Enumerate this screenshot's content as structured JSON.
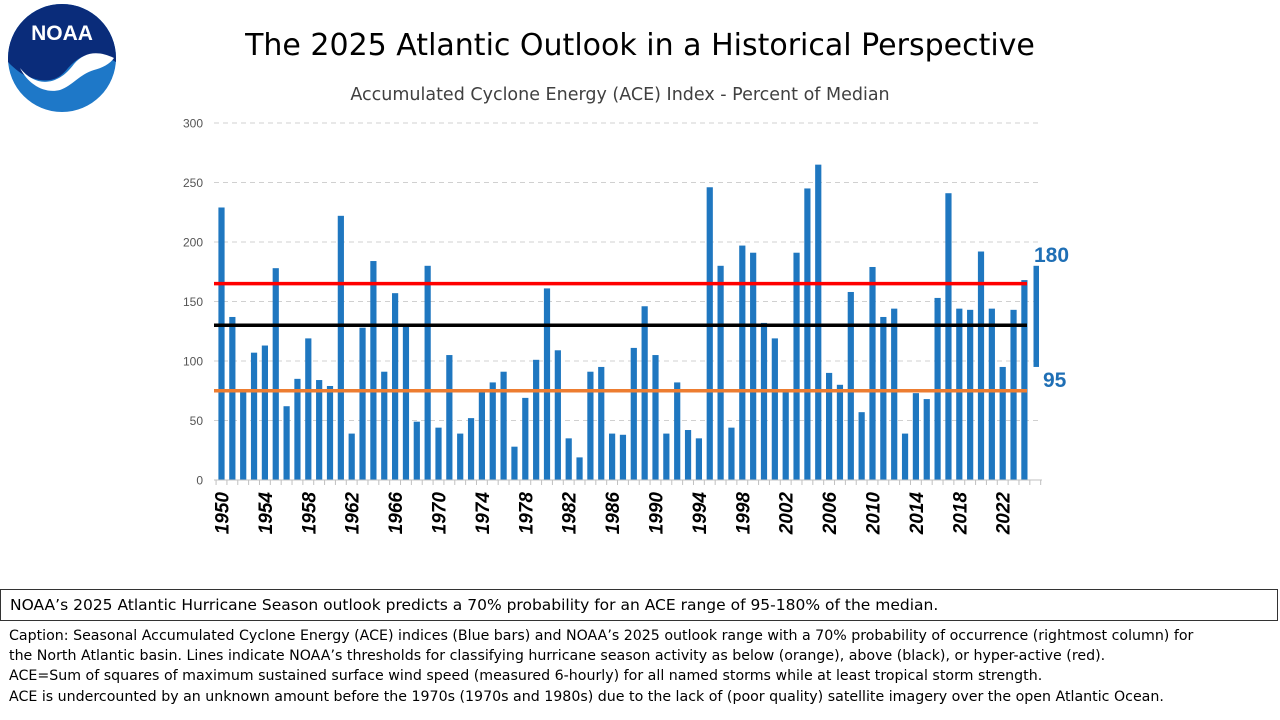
{
  "page": {
    "logo_text": "NOAA",
    "title": "The 2025 Atlantic Outlook in a Historical Perspective",
    "summary": "NOAA’s 2025 Atlantic Hurricane Season outlook predicts a 70% probability for an ACE range of 95-180% of the median.",
    "caption_lines": [
      "Caption: Seasonal Accumulated Cyclone Energy (ACE) indices (Blue bars) and NOAA’s 2025 outlook range with a 70% probability of occurrence (rightmost column) for",
      "the North Atlantic basin. Lines indicate NOAA’s thresholds for classifying hurricane season activity as below (orange), above (black), or hyper-active (red).",
      "ACE=Sum of squares of maximum sustained surface wind speed (measured 6-hourly) for all named storms while at least tropical storm strength.",
      "ACE is undercounted by an unknown amount before the 1970s (1970s and 1980s) due to the lack of (poor quality) satellite imagery over the open Atlantic Ocean."
    ]
  },
  "colors": {
    "bars": "#1f77c0",
    "hyperactive_line": "#ff0000",
    "above_line": "#000000",
    "below_line": "#ed7d31",
    "outlook_label": "#1f6fb5",
    "grid": "#d0d0d0",
    "logo_blue": "#1e78c8",
    "logo_navy": "#0a2c7a"
  },
  "chart_data": {
    "type": "bar",
    "subtitle": "Accumulated Cyclone Energy (ACE) Index - Percent of Median",
    "y_ticks": [
      0,
      50,
      100,
      150,
      200,
      250,
      300
    ],
    "ylim": [
      0,
      300
    ],
    "grid": "horizontal dashed",
    "x_tick_labels": [
      "1950",
      "1954",
      "1958",
      "1962",
      "1966",
      "1970",
      "1974",
      "1978",
      "1982",
      "1986",
      "1990",
      "1994",
      "1998",
      "2002",
      "2006",
      "2010",
      "2014",
      "2018",
      "2022"
    ],
    "years": [
      1950,
      1951,
      1952,
      1953,
      1954,
      1955,
      1956,
      1957,
      1958,
      1959,
      1960,
      1961,
      1962,
      1963,
      1964,
      1965,
      1966,
      1967,
      1968,
      1969,
      1970,
      1971,
      1972,
      1973,
      1974,
      1975,
      1976,
      1977,
      1978,
      1979,
      1980,
      1981,
      1982,
      1983,
      1984,
      1985,
      1986,
      1987,
      1988,
      1989,
      1990,
      1991,
      1992,
      1993,
      1994,
      1995,
      1996,
      1997,
      1998,
      1999,
      2000,
      2001,
      2002,
      2003,
      2004,
      2005,
      2006,
      2007,
      2008,
      2009,
      2010,
      2011,
      2012,
      2013,
      2014,
      2015,
      2016,
      2017,
      2018,
      2019,
      2020,
      2021,
      2022,
      2023,
      2024
    ],
    "values": [
      229,
      137,
      75,
      107,
      113,
      178,
      62,
      85,
      119,
      84,
      79,
      222,
      39,
      128,
      184,
      91,
      157,
      129,
      49,
      180,
      44,
      105,
      39,
      52,
      75,
      82,
      91,
      28,
      69,
      101,
      161,
      109,
      35,
      19,
      91,
      95,
      39,
      38,
      111,
      146,
      105,
      39,
      82,
      42,
      35,
      246,
      180,
      44,
      197,
      191,
      132,
      119,
      75,
      191,
      245,
      265,
      90,
      80,
      158,
      57,
      179,
      137,
      144,
      39,
      73,
      68,
      153,
      241,
      144,
      143,
      192,
      144,
      95,
      143,
      168
    ],
    "thresholds": [
      {
        "name": "hyper-active",
        "value": 165,
        "color": "#ff0000"
      },
      {
        "name": "above",
        "value": 130,
        "color": "#000000"
      },
      {
        "name": "below",
        "value": 75,
        "color": "#ed7d31"
      }
    ],
    "outlook_range": {
      "low": 95,
      "high": 180,
      "low_label": "95",
      "high_label": "180"
    }
  }
}
